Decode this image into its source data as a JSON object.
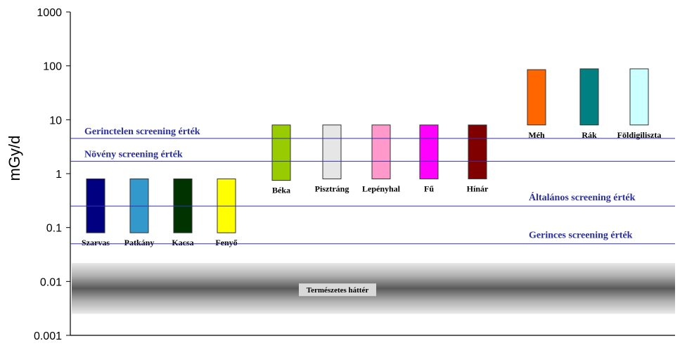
{
  "chart_data": {
    "type": "bar",
    "ylabel": "mGy/d",
    "yscale": "log",
    "ylim": [
      0.001,
      1000
    ],
    "yticks": [
      "1000",
      "100",
      "10",
      "1",
      "0.1",
      "0.01",
      "0.001"
    ],
    "grid": false,
    "categories": [
      "Szarvas",
      "Patkány",
      "Kacsa",
      "Fenyő",
      "Béka",
      "Pisztráng",
      "Lepényhal",
      "Fű",
      "Hínár",
      "Méh",
      "Rák",
      "Földigiliszta"
    ],
    "ranges": [
      {
        "low": 0.08,
        "high": 0.8
      },
      {
        "low": 0.08,
        "high": 0.8
      },
      {
        "low": 0.08,
        "high": 0.8
      },
      {
        "low": 0.08,
        "high": 0.8
      },
      {
        "low": 0.75,
        "high": 8
      },
      {
        "low": 0.8,
        "high": 8
      },
      {
        "low": 0.8,
        "high": 8
      },
      {
        "low": 0.8,
        "high": 8
      },
      {
        "low": 0.8,
        "high": 8
      },
      {
        "low": 8,
        "high": 85
      },
      {
        "low": 8,
        "high": 88
      },
      {
        "low": 8,
        "high": 88
      }
    ],
    "colors": [
      "#000080",
      "#3399cc",
      "#003300",
      "#ffff00",
      "#99cc00",
      "#e6e6e6",
      "#ff99cc",
      "#ff00ff",
      "#800000",
      "#ff6600",
      "#008080",
      "#ccffff"
    ],
    "reference_lines": [
      {
        "label": "Gerinctelen screening érték",
        "value": 4.5
      },
      {
        "label": "Növény screening érték",
        "value": 1.7
      },
      {
        "label": "Általános screening érték",
        "value": 0.25
      },
      {
        "label": "Gerinces screening érték",
        "value": 0.05
      }
    ],
    "background_band": {
      "label": "Természetes háttér",
      "low": 0.0025,
      "high": 0.022,
      "center": 0.007
    }
  }
}
